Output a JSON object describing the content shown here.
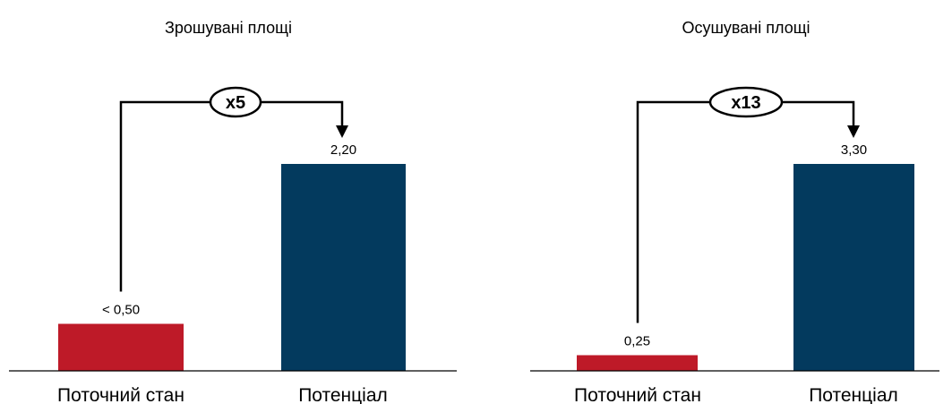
{
  "chart_data": [
    {
      "type": "bar",
      "title": "Зрошувані площі",
      "categories": [
        "Поточний стан",
        "Потенціал"
      ],
      "values": [
        0.5,
        2.2
      ],
      "value_labels": [
        "< 0,50",
        "2,20"
      ],
      "bar_colors": [
        "#be1a28",
        "#033a5e"
      ],
      "multiplier_label": "x5",
      "ylim": [
        0,
        2.2
      ]
    },
    {
      "type": "bar",
      "title": "Осушувані площі",
      "categories": [
        "Поточний стан",
        "Потенціал"
      ],
      "values": [
        0.25,
        3.3
      ],
      "value_labels": [
        "0,25",
        "3,30"
      ],
      "bar_colors": [
        "#be1a28",
        "#033a5e"
      ],
      "multiplier_label": "x13",
      "ylim": [
        0,
        3.3
      ]
    }
  ]
}
